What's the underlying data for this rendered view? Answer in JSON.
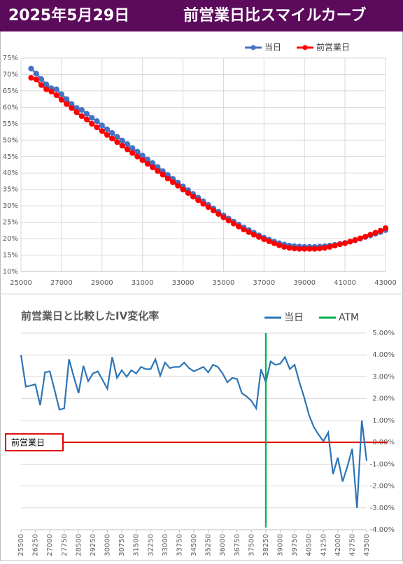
{
  "header": {
    "date": "2025年5月29日",
    "title": "前営業日比スマイルカーブ"
  },
  "chart_data": [
    {
      "type": "line",
      "markers": true,
      "grid": true,
      "y_axis_side": "left",
      "legend": "top-right",
      "x": [
        25500,
        25750,
        26000,
        26250,
        26500,
        26750,
        27000,
        27250,
        27500,
        27750,
        28000,
        28250,
        28500,
        28750,
        29000,
        29250,
        29500,
        29750,
        30000,
        30250,
        30500,
        30750,
        31000,
        31250,
        31500,
        31750,
        32000,
        32250,
        32500,
        32750,
        33000,
        33250,
        33500,
        33750,
        34000,
        34250,
        34500,
        34750,
        35000,
        35250,
        35500,
        35750,
        36000,
        36250,
        36500,
        36750,
        37000,
        37250,
        37500,
        37750,
        38000,
        38250,
        38500,
        38750,
        39000,
        39250,
        39500,
        39750,
        40000,
        40250,
        40500,
        40750,
        41000,
        41250,
        41500,
        41750,
        42000,
        42250,
        42500,
        42750,
        43000
      ],
      "xlim": [
        25000,
        43000
      ],
      "xticks": [
        25000,
        27000,
        29000,
        31000,
        33000,
        35000,
        37000,
        39000,
        41000,
        43000
      ],
      "ylim": [
        10,
        75
      ],
      "yticks": [
        {
          "value": 10,
          "label": "10%"
        },
        {
          "value": 15,
          "label": "15%"
        },
        {
          "value": 20,
          "label": "20%"
        },
        {
          "value": 25,
          "label": "25%"
        },
        {
          "value": 30,
          "label": "30%"
        },
        {
          "value": 35,
          "label": "35%"
        },
        {
          "value": 40,
          "label": "40%"
        },
        {
          "value": 45,
          "label": "45%"
        },
        {
          "value": 50,
          "label": "50%"
        },
        {
          "value": 55,
          "label": "55%"
        },
        {
          "value": 60,
          "label": "60%"
        },
        {
          "value": 65,
          "label": "65%"
        },
        {
          "value": 70,
          "label": "70%"
        },
        {
          "value": 75,
          "label": "75%"
        }
      ],
      "series": [
        {
          "name": "当日",
          "color": "#4472c4",
          "values": [
            71.8,
            70.3,
            68.6,
            67.0,
            65.8,
            65.5,
            64.0,
            62.5,
            61.0,
            59.8,
            59.2,
            58.0,
            56.8,
            55.8,
            54.5,
            53.3,
            52.2,
            51.0,
            49.9,
            48.8,
            47.6,
            46.5,
            45.3,
            44.1,
            43.0,
            41.8,
            40.6,
            39.4,
            38.2,
            37.1,
            35.9,
            34.8,
            33.6,
            32.5,
            31.4,
            30.3,
            29.2,
            28.2,
            27.1,
            26.1,
            25.2,
            24.3,
            23.4,
            22.6,
            21.8,
            21.0,
            20.3,
            19.7,
            19.1,
            18.6,
            18.2,
            17.9,
            17.7,
            17.6,
            17.5,
            17.5,
            17.5,
            17.6,
            17.7,
            17.9,
            18.1,
            18.4,
            18.7,
            19.1,
            19.5,
            20.0,
            20.5,
            21.0,
            21.5,
            22.0,
            22.6
          ]
        },
        {
          "name": "前営業日",
          "color": "#ff0000",
          "values": [
            69.0,
            68.5,
            66.8,
            65.5,
            64.8,
            63.7,
            62.3,
            61.0,
            59.8,
            58.5,
            57.3,
            56.3,
            55.0,
            53.9,
            52.8,
            51.6,
            50.5,
            49.4,
            48.3,
            47.2,
            46.1,
            45.0,
            43.9,
            42.8,
            41.7,
            40.6,
            39.5,
            38.3,
            37.2,
            36.1,
            35.0,
            33.9,
            32.8,
            31.7,
            30.6,
            29.6,
            28.6,
            27.5,
            26.5,
            25.5,
            24.6,
            23.7,
            22.8,
            22.0,
            21.2,
            20.5,
            19.8,
            19.2,
            18.6,
            18.0,
            17.5,
            17.2,
            17.0,
            16.9,
            16.9,
            16.9,
            16.9,
            17.0,
            17.2,
            17.5,
            17.9,
            18.3,
            18.6,
            19.1,
            19.6,
            20.1,
            20.6,
            21.2,
            21.8,
            22.4,
            23.2
          ]
        }
      ]
    },
    {
      "type": "line",
      "markers": false,
      "grid": true,
      "y_axis_side": "right",
      "legend": "top-right",
      "title": "前営業日と比較したIV変化率",
      "x": [
        25500,
        25750,
        26000,
        26250,
        26500,
        26750,
        27000,
        27250,
        27500,
        27750,
        28000,
        28250,
        28500,
        28750,
        29000,
        29250,
        29500,
        29750,
        30000,
        30250,
        30500,
        30750,
        31000,
        31250,
        31500,
        31750,
        32000,
        32250,
        32500,
        32750,
        33000,
        33250,
        33500,
        33750,
        34000,
        34250,
        34500,
        34750,
        35000,
        35250,
        35500,
        35750,
        36000,
        36250,
        36500,
        36750,
        37000,
        37250,
        37500,
        37750,
        38000,
        38250,
        38500,
        38750,
        39000,
        39250,
        39500,
        39750,
        40000,
        40250,
        40500,
        40750,
        41000,
        41250,
        41500,
        41750,
        42000,
        42250,
        42500,
        42750,
        43000,
        43250,
        43500
      ],
      "xlim": [
        25500,
        43500
      ],
      "xticks": [
        25500,
        26250,
        27000,
        27750,
        28500,
        29250,
        30000,
        30750,
        31500,
        32250,
        33000,
        33750,
        34500,
        35250,
        36000,
        36750,
        37500,
        38250,
        39000,
        39750,
        40500,
        41250,
        42000,
        42750,
        43500
      ],
      "ylim": [
        -4,
        5
      ],
      "yticks": [
        {
          "value": -4,
          "label": "-4.00%"
        },
        {
          "value": -3,
          "label": "-3.00%"
        },
        {
          "value": -2,
          "label": "-2.00%"
        },
        {
          "value": -1,
          "label": "-1.00%"
        },
        {
          "value": 0,
          "label": "0.00%"
        },
        {
          "value": 1,
          "label": "1.00%"
        },
        {
          "value": 2,
          "label": "2.00%"
        },
        {
          "value": 3,
          "label": "3.00%"
        },
        {
          "value": 4,
          "label": "4.00%"
        },
        {
          "value": 5,
          "label": "5.00%"
        }
      ],
      "reference_line": {
        "label": "前営業日",
        "value": 0,
        "color": "#e00000"
      },
      "series": [
        {
          "name": "当日",
          "color": "#2e75b6",
          "values": [
            4.0,
            2.55,
            2.6,
            2.65,
            1.7,
            3.2,
            3.25,
            2.4,
            1.5,
            1.55,
            3.8,
            3.0,
            2.25,
            3.5,
            2.8,
            3.15,
            3.25,
            2.85,
            2.45,
            3.9,
            2.95,
            3.3,
            3.0,
            3.3,
            3.15,
            3.45,
            3.35,
            3.35,
            3.8,
            3.05,
            3.65,
            3.4,
            3.45,
            3.45,
            3.65,
            3.4,
            3.25,
            3.35,
            3.45,
            3.2,
            3.55,
            3.45,
            3.15,
            2.75,
            2.95,
            2.9,
            2.25,
            2.1,
            1.9,
            1.55,
            3.35,
            2.75,
            3.7,
            3.55,
            3.6,
            3.9,
            3.35,
            3.55,
            2.75,
            2.05,
            1.25,
            0.7,
            0.35,
            0.05,
            0.45,
            -1.45,
            -0.7,
            -1.8,
            -1.1,
            -0.3,
            -3.0,
            1.0,
            -0.85
          ]
        },
        {
          "name": "ATM",
          "color": "#00b050",
          "x": [
            38250,
            38250
          ],
          "values": [
            -3.9,
            5
          ]
        }
      ]
    }
  ]
}
